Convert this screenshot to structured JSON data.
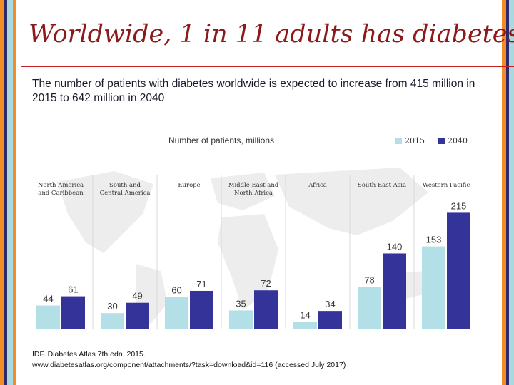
{
  "slide": {
    "title": "Worldwide, 1 in 11 adults has diabetes",
    "subtitle": "The number of patients with diabetes worldwide is expected to increase from 415 million in 2015 to 642 million in 2040",
    "source_line1": "IDF. Diabetes Atlas 7th edn. 2015.",
    "source_line2": "www.diabetesatlas.org/component/attachments/?task=download&id=116 (accessed July 2017)"
  },
  "colors": {
    "stripe_orange": "#f28c28",
    "stripe_dark": "#2b2b6b",
    "stripe_teal": "#a9d8de",
    "title": "#8b1a1a",
    "rule": "#c62020",
    "bar_2015": "#b3e0e6",
    "bar_2040": "#33339a"
  },
  "chart_data": {
    "type": "bar",
    "title": "Number of patients, millions",
    "categories": [
      "North America and Caribbean",
      "South and Central America",
      "Europe",
      "Middle East and North Africa",
      "Africa",
      "South East Asia",
      "Western Pacific"
    ],
    "category_lines": [
      [
        "North America",
        "and Caribbean"
      ],
      [
        "South and",
        "Central America"
      ],
      [
        "Europe"
      ],
      [
        "Middle East and",
        "North Africa"
      ],
      [
        "Africa"
      ],
      [
        "South East Asia"
      ],
      [
        "Western Pacific"
      ]
    ],
    "series": [
      {
        "name": "2015",
        "values": [
          44,
          30,
          60,
          35,
          14,
          78,
          153
        ]
      },
      {
        "name": "2040",
        "values": [
          61,
          49,
          71,
          72,
          34,
          140,
          215
        ]
      }
    ],
    "ylim": [
      0,
      230
    ],
    "legend_position": "top-right",
    "grid": false
  }
}
